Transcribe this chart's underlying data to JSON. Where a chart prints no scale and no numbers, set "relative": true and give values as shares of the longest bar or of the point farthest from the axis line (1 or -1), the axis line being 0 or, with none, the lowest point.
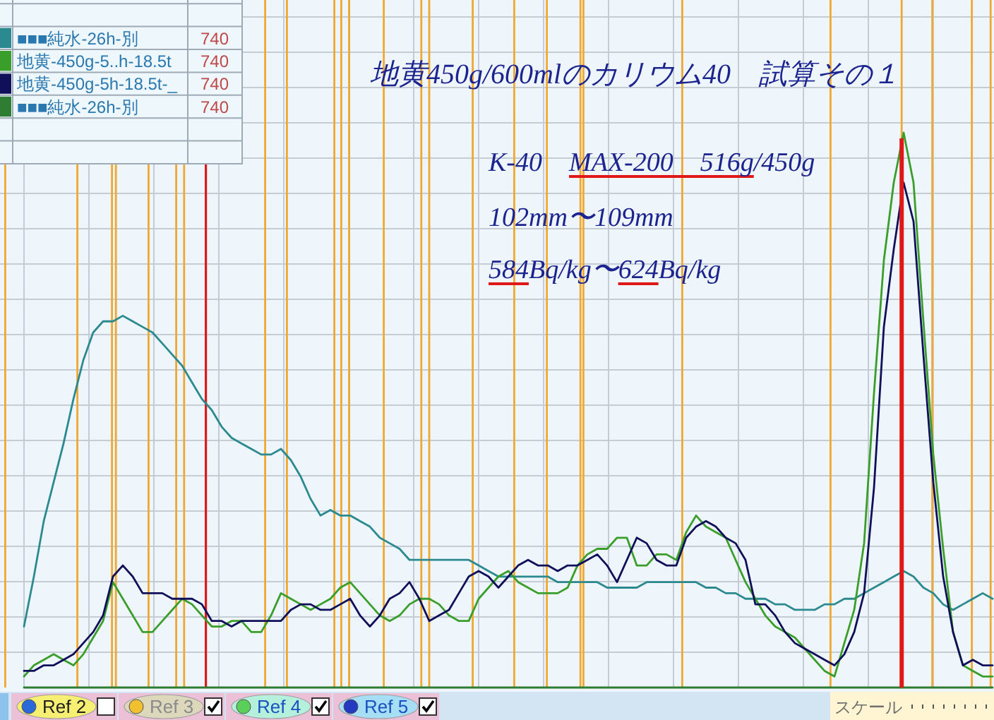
{
  "chart_data": {
    "type": "line",
    "title": "地黄450g/600mlのカリウム40　試算その１",
    "relative": true,
    "grid": true,
    "legend": "top left",
    "categories": [
      null,
      null,
      null,
      null,
      null,
      null,
      null,
      null,
      null,
      null,
      null,
      null,
      null,
      null,
      null,
      null,
      null,
      null,
      null,
      null,
      null,
      null,
      null,
      null,
      null,
      null,
      null,
      null,
      null,
      null,
      null,
      null,
      null,
      null,
      null,
      null,
      null,
      null,
      null,
      null,
      null,
      null,
      null,
      null,
      null,
      null,
      null,
      null,
      null,
      null,
      null,
      null,
      null,
      null,
      null,
      null,
      null,
      null,
      null,
      null,
      null,
      null,
      null,
      null,
      null,
      null,
      null,
      null,
      null,
      null,
      null,
      null,
      null,
      null,
      null,
      null,
      null,
      null,
      null,
      null,
      null,
      null,
      null,
      null,
      null,
      null,
      null,
      null,
      null,
      null,
      null,
      null,
      null,
      null,
      null,
      null,
      null,
      null,
      null
    ],
    "series": [
      {
        "name": "■■■純水-26h-別",
        "color": "#2b8a8f",
        "values": [
          0.11,
          0.2,
          0.3,
          0.37,
          0.44,
          0.52,
          0.59,
          0.64,
          0.66,
          0.66,
          0.67,
          0.66,
          0.65,
          0.64,
          0.62,
          0.6,
          0.58,
          0.55,
          0.52,
          0.5,
          0.47,
          0.45,
          0.44,
          0.43,
          0.42,
          0.42,
          0.43,
          0.41,
          0.38,
          0.34,
          0.31,
          0.32,
          0.31,
          0.31,
          0.3,
          0.29,
          0.27,
          0.26,
          0.25,
          0.23,
          0.23,
          0.23,
          0.23,
          0.23,
          0.23,
          0.23,
          0.22,
          0.21,
          0.2,
          0.2,
          0.2,
          0.2,
          0.2,
          0.2,
          0.19,
          0.19,
          0.19,
          0.19,
          0.19,
          0.18,
          0.18,
          0.18,
          0.18,
          0.19,
          0.19,
          0.19,
          0.19,
          0.19,
          0.19,
          0.18,
          0.18,
          0.17,
          0.17,
          0.16,
          0.16,
          0.16,
          0.15,
          0.15,
          0.14,
          0.14,
          0.14,
          0.15,
          0.15,
          0.16,
          0.16,
          0.17,
          0.18,
          0.19,
          0.2,
          0.21,
          0.2,
          0.18,
          0.17,
          0.15,
          0.14,
          0.15,
          0.16,
          0.17,
          0.16
        ]
      },
      {
        "name": "地黄-450g-5..h-18.5t",
        "color": "#3a9e2a",
        "values": [
          0.02,
          0.04,
          0.05,
          0.06,
          0.05,
          0.04,
          0.06,
          0.09,
          0.12,
          0.19,
          0.16,
          0.13,
          0.1,
          0.1,
          0.12,
          0.14,
          0.16,
          0.15,
          0.13,
          0.11,
          0.11,
          0.12,
          0.12,
          0.1,
          0.1,
          0.13,
          0.17,
          0.16,
          0.15,
          0.14,
          0.15,
          0.16,
          0.18,
          0.19,
          0.17,
          0.15,
          0.13,
          0.12,
          0.13,
          0.15,
          0.16,
          0.16,
          0.15,
          0.13,
          0.12,
          0.12,
          0.16,
          0.18,
          0.2,
          0.21,
          0.19,
          0.18,
          0.17,
          0.17,
          0.17,
          0.18,
          0.22,
          0.24,
          0.25,
          0.25,
          0.27,
          0.27,
          0.22,
          0.22,
          0.24,
          0.24,
          0.23,
          0.28,
          0.31,
          0.29,
          0.28,
          0.27,
          0.23,
          0.19,
          0.16,
          0.13,
          0.11,
          0.1,
          0.09,
          0.07,
          0.05,
          0.03,
          0.02,
          0.08,
          0.14,
          0.26,
          0.53,
          0.77,
          0.91,
          1.0,
          0.91,
          0.66,
          0.42,
          0.25,
          0.1,
          0.04,
          0.03,
          0.02,
          0.02
        ]
      },
      {
        "name": "地黄-450g-5h-18.5t-_",
        "color": "#10105a",
        "values": [
          0.03,
          0.03,
          0.04,
          0.04,
          0.05,
          0.06,
          0.08,
          0.1,
          0.13,
          0.2,
          0.22,
          0.2,
          0.17,
          0.17,
          0.17,
          0.16,
          0.16,
          0.16,
          0.15,
          0.12,
          0.12,
          0.11,
          0.12,
          0.12,
          0.12,
          0.12,
          0.12,
          0.14,
          0.15,
          0.15,
          0.14,
          0.14,
          0.15,
          0.16,
          0.13,
          0.11,
          0.13,
          0.16,
          0.17,
          0.19,
          0.16,
          0.12,
          0.13,
          0.14,
          0.17,
          0.2,
          0.21,
          0.2,
          0.18,
          0.2,
          0.22,
          0.23,
          0.22,
          0.22,
          0.21,
          0.22,
          0.22,
          0.23,
          0.24,
          0.22,
          0.19,
          0.23,
          0.27,
          0.26,
          0.23,
          0.22,
          0.22,
          0.27,
          0.29,
          0.3,
          0.29,
          0.27,
          0.26,
          0.23,
          0.15,
          0.15,
          0.13,
          0.1,
          0.08,
          0.07,
          0.06,
          0.05,
          0.04,
          0.06,
          0.1,
          0.17,
          0.36,
          0.65,
          0.79,
          0.91,
          0.84,
          0.6,
          0.37,
          0.2,
          0.1,
          0.04,
          0.05,
          0.04,
          0.04
        ]
      },
      {
        "name": "■■■純水-26h-別",
        "color": "#2e7d32",
        "values": [
          0,
          0,
          0,
          0,
          0,
          0,
          0,
          0,
          0,
          0,
          0,
          0,
          0,
          0,
          0,
          0,
          0,
          0,
          0,
          0,
          0,
          0,
          0,
          0,
          0,
          0,
          0,
          0,
          0,
          0,
          0,
          0,
          0,
          0,
          0,
          0,
          0,
          0,
          0,
          0,
          0,
          0,
          0,
          0,
          0,
          0,
          0,
          0,
          0,
          0,
          0,
          0,
          0,
          0,
          0,
          0,
          0,
          0,
          0,
          0,
          0,
          0,
          0,
          0,
          0,
          0,
          0,
          0,
          0,
          0,
          0,
          0,
          0,
          0,
          0,
          0,
          0,
          0,
          0,
          0,
          0,
          0,
          0,
          0,
          0,
          0,
          0,
          0,
          0,
          0,
          0,
          0,
          0,
          0,
          0,
          0,
          0,
          0,
          0
        ]
      }
    ],
    "annotations": [
      "K-40　MAX-200　516g/450g",
      "102mm〜109mm",
      "584Bq/kg〜624Bq/kg",
      "740",
      "740",
      "740",
      "740",
      "Ref 2",
      "Ref 3",
      "Ref 4",
      "Ref 5",
      "スケール"
    ]
  }
}
